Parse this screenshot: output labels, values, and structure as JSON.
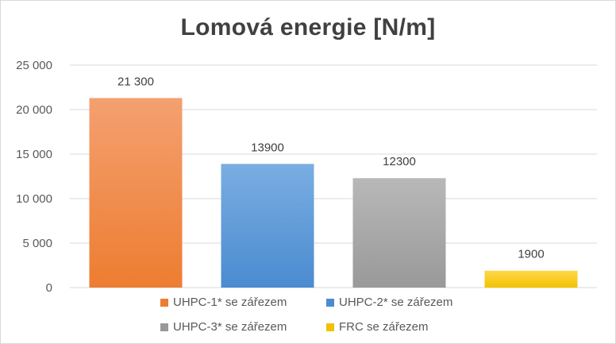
{
  "chart_data": {
    "type": "bar",
    "title": "Lomová energie [N/m]",
    "xlabel": "",
    "ylabel": "",
    "ylim": [
      0,
      25000
    ],
    "yticks": [
      {
        "value": 0,
        "label": "0"
      },
      {
        "value": 5000,
        "label": "5 000"
      },
      {
        "value": 10000,
        "label": "10 000"
      },
      {
        "value": 15000,
        "label": "15 000"
      },
      {
        "value": 20000,
        "label": "20 000"
      },
      {
        "value": 25000,
        "label": "25 000"
      }
    ],
    "grid": true,
    "legend_position": "bottom",
    "series": [
      {
        "name": "UHPC-1* se zářezem",
        "value": 21300,
        "label": "21 300",
        "color": "#ed7d31",
        "color_top": "#f4a070"
      },
      {
        "name": "UHPC-2* se zářezem",
        "value": 13900,
        "label": "13900",
        "color": "#4a8bd0",
        "color_top": "#7aaee2"
      },
      {
        "name": "UHPC-3* se zářezem",
        "value": 12300,
        "label": "12300",
        "color": "#999999",
        "color_top": "#b8b8b8"
      },
      {
        "name": "FRC se zářezem",
        "value": 1900,
        "label": "1900",
        "color": "#f2c200",
        "color_top": "#ffd84a"
      }
    ]
  }
}
